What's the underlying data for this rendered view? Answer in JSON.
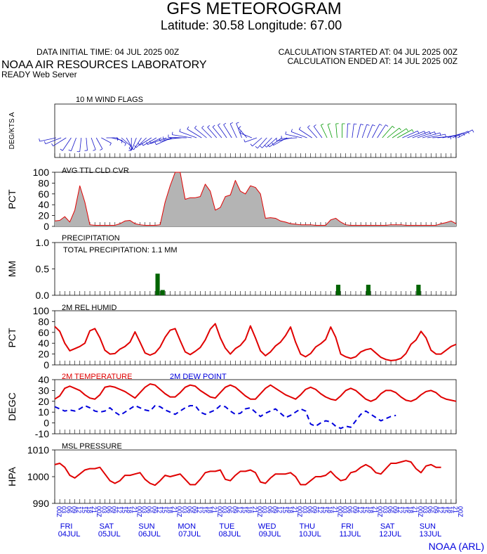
{
  "header": {
    "title": "GFS METEOROGRAM",
    "subtitle": "Latitude: 30.58 Longitude:  67.00",
    "data_initial_time": "DATA INITIAL TIME: 04 JUL 2025 00Z",
    "calc_started": "CALCULATION STARTED AT: 04 JUL 2025 00Z",
    "calc_ended": "CALCULATION ENDED AT: 14 JUL 2025 00Z",
    "lab": "NOAA AIR RESOURCES LABORATORY",
    "server": "READY Web Server",
    "footer": "NOAA (ARL)"
  },
  "colors": {
    "red": "#e00000",
    "blue": "#0000dd",
    "green": "#006400",
    "gray": "#b4b4b4",
    "wind_blue": "#1515c8",
    "wind_green": "#009900"
  },
  "time_axis": {
    "hour_labels": [
      "00Z",
      "03",
      "06",
      "09",
      "12",
      "15",
      "18",
      "21"
    ],
    "days": [
      {
        "day": "FRI",
        "date": "04JUL"
      },
      {
        "day": "SAT",
        "date": "05JUL"
      },
      {
        "day": "SUN",
        "date": "06JUL"
      },
      {
        "day": "MON",
        "date": "07JUL"
      },
      {
        "day": "TUE",
        "date": "08JUL"
      },
      {
        "day": "WED",
        "date": "09JUL"
      },
      {
        "day": "THU",
        "date": "10JUL"
      },
      {
        "day": "FRI",
        "date": "11JUL"
      },
      {
        "day": "SAT",
        "date": "12JUL"
      },
      {
        "day": "SUN",
        "date": "13JUL"
      }
    ]
  },
  "chart_data": [
    {
      "type": "wind-barbs",
      "title": "10 M  WIND FLAGS",
      "ylabel": "DEG/KTS  A",
      "directions": [
        258,
        249,
        238,
        214,
        201,
        186,
        175,
        160,
        151,
        118,
        90,
        103,
        120,
        131,
        150,
        180,
        201,
        213,
        226,
        238,
        240,
        244,
        250,
        246,
        258,
        265,
        271,
        279,
        290,
        301,
        309,
        315,
        319,
        320,
        325,
        328,
        335,
        339,
        320,
        292,
        250,
        229,
        222,
        224,
        228,
        234,
        241,
        258,
        267,
        282,
        291,
        303,
        318,
        324,
        334,
        342,
        355,
        360,
        2,
        7,
        14,
        19,
        22,
        28,
        33,
        41,
        51,
        57,
        61,
        66,
        69,
        70,
        71,
        74,
        79,
        86,
        84,
        79,
        73,
        67,
        62
      ],
      "speeds": [
        6,
        6,
        5,
        5,
        4,
        4,
        3,
        3,
        3,
        2,
        2,
        2,
        2,
        3,
        3,
        3,
        3,
        4,
        4,
        4,
        5,
        5,
        6,
        6,
        6,
        7,
        7,
        8,
        7,
        6,
        5,
        4,
        4,
        4,
        5,
        5,
        5,
        5,
        3,
        3,
        3,
        3,
        4,
        4,
        4,
        5,
        5,
        5,
        5,
        6,
        6,
        5,
        4,
        4,
        4,
        4,
        4,
        4,
        4,
        4,
        4,
        4,
        4,
        5,
        5,
        5,
        5,
        6,
        6,
        6,
        7,
        7,
        7,
        7,
        7,
        7,
        7,
        6,
        6,
        6,
        6
      ],
      "green_indices": [
        54,
        55,
        56,
        57,
        65,
        66,
        67,
        68
      ]
    },
    {
      "type": "area",
      "title": "AVG TTL CLD CVR",
      "ylabel": "PCT",
      "ylim": [
        0,
        100
      ],
      "yticks": [
        0,
        20,
        40,
        60,
        80,
        100
      ],
      "values": [
        10,
        11,
        18,
        8,
        30,
        75,
        45,
        3,
        2,
        2,
        2,
        2,
        2,
        5,
        10,
        11,
        5,
        3,
        2,
        2,
        2,
        3,
        45,
        75,
        100,
        100,
        50,
        53,
        53,
        55,
        78,
        65,
        30,
        35,
        55,
        58,
        85,
        65,
        60,
        75,
        72,
        60,
        15,
        16,
        15,
        10,
        8,
        5,
        4,
        3,
        3,
        3,
        2,
        2,
        2,
        12,
        15,
        8,
        3,
        2,
        2,
        2,
        2,
        2,
        2,
        2,
        2,
        3,
        3,
        3,
        2,
        2,
        2,
        2,
        2,
        2,
        2,
        5,
        7,
        10,
        5,
        2,
        2,
        2,
        2,
        2
      ],
      "color": "#b4b4b4",
      "line_color": "#e00000"
    },
    {
      "type": "bar",
      "title": "PRECIPITATION",
      "annotation": "TOTAL PRECIPITATION:   1.1 MM",
      "ylabel": "MM",
      "ylim": [
        0,
        1.0
      ],
      "yticks": [
        0.0,
        0.5,
        1.0
      ],
      "ytick_labels": [
        "0.0",
        "0.5",
        "1.0"
      ],
      "bars": [
        {
          "index": 20,
          "value": 0.41
        },
        {
          "index": 21,
          "value": 0.1
        },
        {
          "index": 56,
          "value": 0.2
        },
        {
          "index": 62,
          "value": 0.2
        },
        {
          "index": 72,
          "value": 0.2
        }
      ],
      "color": "#006400"
    },
    {
      "type": "line",
      "title": "2M REL HUMID",
      "ylabel": "PCT",
      "ylim": [
        0,
        100
      ],
      "yticks": [
        0,
        20,
        40,
        60,
        80,
        100
      ],
      "values": [
        71,
        62,
        40,
        26,
        30,
        34,
        40,
        63,
        67,
        50,
        27,
        20,
        21,
        29,
        34,
        42,
        61,
        42,
        22,
        18,
        22,
        33,
        51,
        64,
        67,
        45,
        24,
        19,
        25,
        32,
        46,
        66,
        76,
        50,
        31,
        20,
        30,
        36,
        47,
        72,
        50,
        26,
        17,
        24,
        35,
        42,
        54,
        70,
        42,
        20,
        15,
        21,
        33,
        39,
        47,
        70,
        51,
        20,
        15,
        12,
        15,
        24,
        28,
        30,
        22,
        14,
        10,
        8,
        9,
        12,
        21,
        38,
        46,
        62,
        50,
        27,
        20,
        20,
        27,
        34,
        38,
        40
      ],
      "color": "#e00000"
    },
    {
      "type": "line",
      "title": "",
      "ylabel": "DEGC",
      "ylim": [
        -10,
        40
      ],
      "yticks": [
        -10,
        0,
        10,
        20,
        30,
        40
      ],
      "series": [
        {
          "name": "2M TEMPERATURE",
          "values": [
            22,
            25,
            32,
            34,
            32,
            30,
            26,
            23,
            22,
            26,
            33,
            34,
            33,
            31,
            29,
            26,
            23,
            28,
            33,
            36,
            35,
            31,
            27,
            24,
            24,
            28,
            33,
            35,
            34,
            30,
            27,
            24,
            23,
            28,
            33,
            35,
            33,
            29,
            25,
            22,
            22,
            27,
            32,
            35,
            32,
            29,
            26,
            24,
            22,
            26,
            31,
            33,
            31,
            27,
            24,
            22,
            21,
            25,
            30,
            32,
            30,
            26,
            22,
            20,
            22,
            27,
            30,
            30,
            28,
            24,
            21,
            20,
            22,
            26,
            29,
            30,
            28,
            24,
            22,
            21,
            20
          ],
          "color": "#e00000"
        },
        {
          "name": "2M   DEW POINT",
          "values": [
            15,
            13,
            11,
            12,
            11,
            13,
            16,
            14,
            11,
            10,
            11,
            14,
            10,
            7,
            10,
            13,
            16,
            14,
            12,
            11,
            16,
            15,
            12,
            10,
            8,
            11,
            14,
            16,
            16,
            10,
            8,
            10,
            12,
            16,
            15,
            11,
            8,
            9,
            13,
            14,
            10,
            6,
            9,
            11,
            13,
            9,
            5,
            7,
            10,
            13,
            11,
            -1,
            -3,
            0,
            2,
            1,
            -3,
            -5,
            -3,
            -4,
            2,
            8,
            11,
            8,
            5,
            2,
            4,
            6,
            7
          ],
          "color": "#0000dd"
        }
      ]
    },
    {
      "type": "line",
      "title": "MSL PRESSURE",
      "ylabel": "HPA",
      "ylim": [
        990,
        1010
      ],
      "yticks": [
        990,
        1000,
        1010
      ],
      "values": [
        1004.5,
        1005.0,
        1003.5,
        1000.5,
        999.5,
        1001.0,
        1002.5,
        1003.0,
        1003.0,
        1003.5,
        1001.0,
        998.5,
        997.5,
        998.5,
        1000.5,
        1000.5,
        1001.0,
        1001.5,
        999.0,
        997.5,
        996.8,
        998.5,
        1000.5,
        1000.0,
        1000.5,
        1001.0,
        999.0,
        997.0,
        997.0,
        999.0,
        1001.5,
        1002.0,
        1002.0,
        1002.5,
        999.0,
        998.5,
        1000.5,
        1002.0,
        1002.0,
        1002.5,
        1001.5,
        998.0,
        997.5,
        999.5,
        1001.0,
        1001.0,
        1001.0,
        1001.5,
        1000.0,
        997.0,
        997.0,
        998.5,
        1000.0,
        1000.0,
        1000.5,
        1002.0,
        1000.0,
        998.5,
        999.0,
        1001.5,
        1002.0,
        1003.5,
        1004.5,
        1003.5,
        1001.5,
        1001.0,
        1003.0,
        1005.0,
        1005.0,
        1005.5,
        1006.0,
        1005.5,
        1003.0,
        1001.5,
        1004.0,
        1004.5,
        1003.5,
        1003.5
      ],
      "color": "#e00000"
    }
  ]
}
